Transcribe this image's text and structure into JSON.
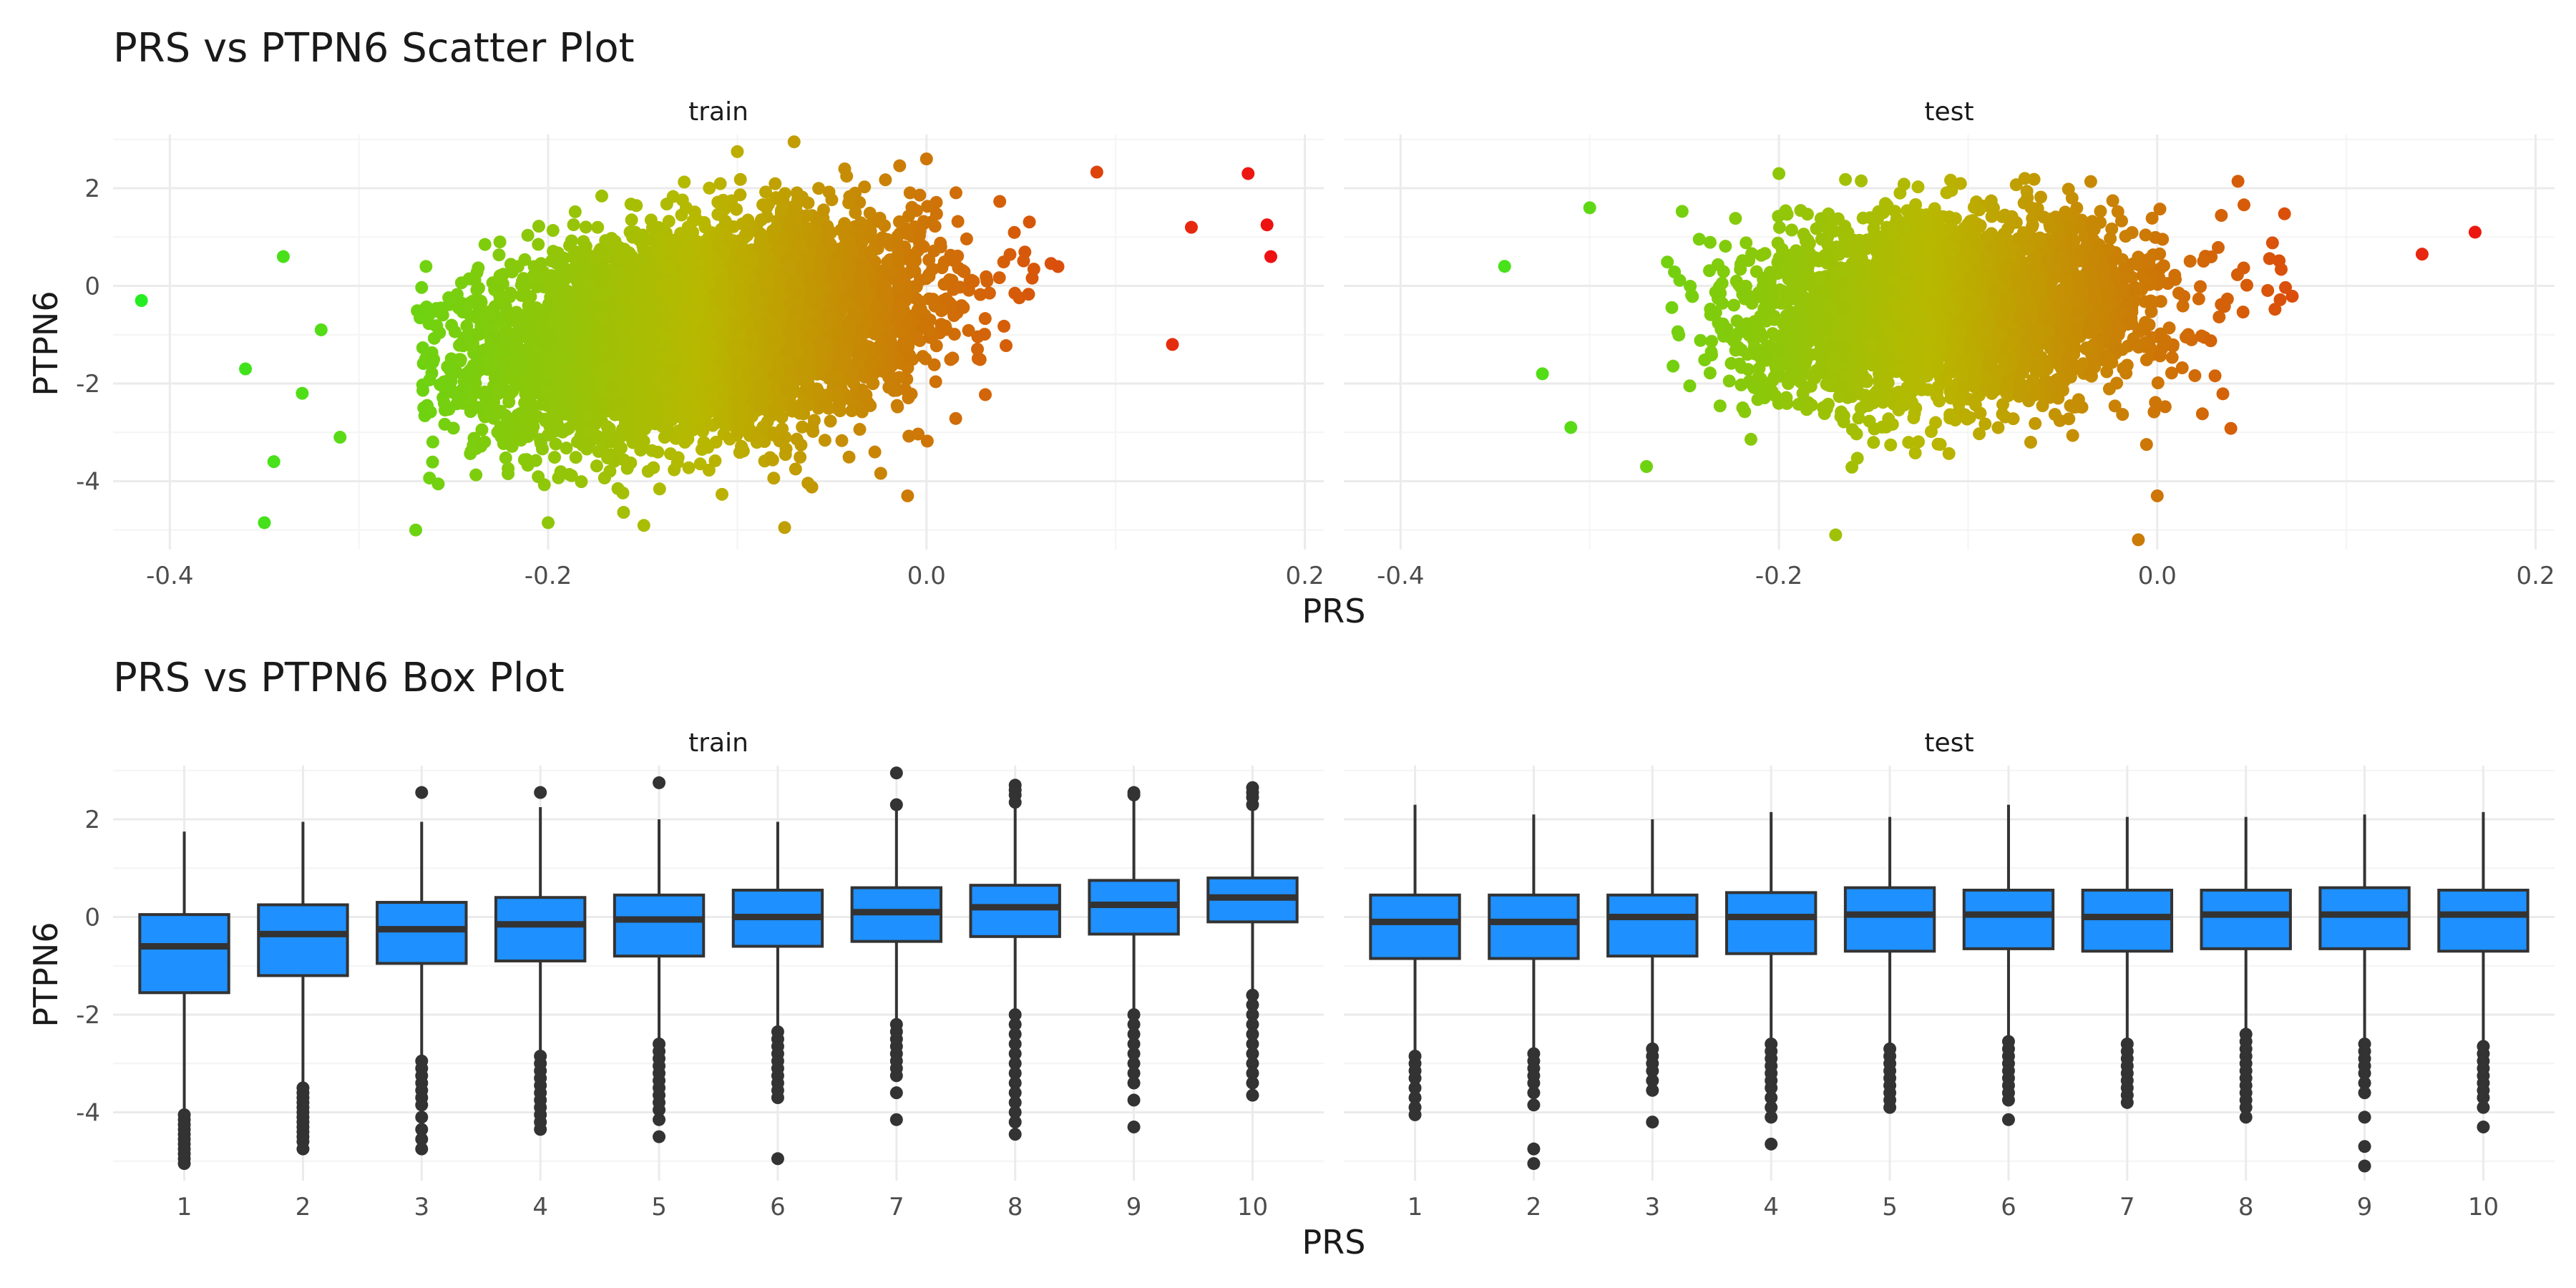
{
  "chart_data": [
    {
      "type": "scatter",
      "title": "PRS vs PTPN6 Scatter Plot",
      "xlabel": "PRS",
      "ylabel": "PTPN6",
      "xlim": [
        -0.43,
        0.21
      ],
      "ylim": [
        -5.4,
        3.1
      ],
      "x_ticks": [
        -0.4,
        -0.2,
        0.0,
        0.2
      ],
      "x_tick_labels": [
        "-0.4",
        "-0.2",
        "0.0",
        "0.2"
      ],
      "y_ticks": [
        -4,
        -2,
        0,
        2
      ],
      "y_tick_labels": [
        "-4",
        "-2",
        "0",
        "2"
      ],
      "color_scale": {
        "low": "#22ee22",
        "mid": "#b8b800",
        "high": "#ee1111",
        "variable": "PRS",
        "range": [
          -0.42,
          0.18
        ]
      },
      "grid": true,
      "panels": [
        {
          "strip": "train",
          "cloud": {
            "x_mean": -0.12,
            "x_sd": 0.058,
            "y_mean": -0.9,
            "y_sd": 1.0,
            "slope": 5.0,
            "x_range": [
              -0.27,
              0.15
            ],
            "y_range": [
              -5.0,
              2.6
            ],
            "n_points": 6000
          },
          "points": [
            {
              "x": -0.415,
              "y": -0.3
            },
            {
              "x": 0.17,
              "y": 2.3
            },
            {
              "x": 0.18,
              "y": 1.25
            },
            {
              "x": 0.182,
              "y": 0.6
            },
            {
              "x": -0.35,
              "y": -4.85
            },
            {
              "x": -0.07,
              "y": 2.95
            },
            {
              "x": -0.345,
              "y": -3.6
            },
            {
              "x": -0.36,
              "y": -1.7
            },
            {
              "x": -0.34,
              "y": 0.6
            },
            {
              "x": -0.32,
              "y": -0.9
            },
            {
              "x": -0.27,
              "y": -5.0
            },
            {
              "x": -0.2,
              "y": -4.85
            },
            {
              "x": -0.075,
              "y": -4.95
            },
            {
              "x": -0.1,
              "y": 2.75
            },
            {
              "x": 0.0,
              "y": 2.6
            },
            {
              "x": 0.14,
              "y": 1.2
            },
            {
              "x": 0.13,
              "y": -1.2
            },
            {
              "x": -0.01,
              "y": -4.3
            },
            {
              "x": -0.33,
              "y": -2.2
            },
            {
              "x": -0.31,
              "y": -3.1
            }
          ]
        },
        {
          "strip": "test",
          "cloud": {
            "x_mean": -0.11,
            "x_sd": 0.055,
            "y_mean": -0.5,
            "y_sd": 0.95,
            "slope": 2.0,
            "x_range": [
              -0.26,
              0.13
            ],
            "y_range": [
              -5.0,
              2.2
            ],
            "n_points": 3200
          },
          "points": [
            {
              "x": 0.168,
              "y": 1.1
            },
            {
              "x": -0.345,
              "y": 0.4
            },
            {
              "x": -0.325,
              "y": -1.8
            },
            {
              "x": -0.01,
              "y": -5.2
            },
            {
              "x": -0.17,
              "y": -5.1
            },
            {
              "x": -0.07,
              "y": 2.2
            },
            {
              "x": 0.14,
              "y": 0.65
            },
            {
              "x": -0.3,
              "y": 1.6
            },
            {
              "x": -0.27,
              "y": -3.7
            },
            {
              "x": 0.0,
              "y": -4.3
            },
            {
              "x": -0.2,
              "y": 2.3
            },
            {
              "x": -0.31,
              "y": -2.9
            }
          ]
        }
      ]
    },
    {
      "type": "box",
      "title": "PRS vs PTPN6 Box Plot",
      "xlabel": "PRS",
      "ylabel": "PTPN6",
      "categories": [
        "1",
        "2",
        "3",
        "4",
        "5",
        "6",
        "7",
        "8",
        "9",
        "10"
      ],
      "ylim": [
        -5.4,
        3.1
      ],
      "y_ticks": [
        -4,
        -2,
        0,
        2
      ],
      "y_tick_labels": [
        "-4",
        "-2",
        "0",
        "2"
      ],
      "box_color": "#1e90ff",
      "grid": true,
      "panels": [
        {
          "strip": "train",
          "boxes": [
            {
              "whisker_low": -4.0,
              "q1": -1.55,
              "median": -0.6,
              "q3": 0.05,
              "whisker_high": 1.75,
              "outliers": [
                -4.05,
                -4.15,
                -4.25,
                -4.35,
                -4.45,
                -4.55,
                -4.65,
                -4.75,
                -4.85,
                -4.95,
                -5.05
              ]
            },
            {
              "whisker_low": -3.45,
              "q1": -1.2,
              "median": -0.35,
              "q3": 0.25,
              "whisker_high": 1.95,
              "outliers": [
                -3.5,
                -3.6,
                -3.7,
                -3.8,
                -3.9,
                -4.0,
                -4.1,
                -4.2,
                -4.3,
                -4.4,
                -4.5,
                -4.6,
                -4.75
              ]
            },
            {
              "whisker_low": -2.9,
              "q1": -0.95,
              "median": -0.25,
              "q3": 0.3,
              "whisker_high": 1.95,
              "outliers": [
                2.55,
                -2.95,
                -3.1,
                -3.25,
                -3.4,
                -3.55,
                -3.7,
                -3.85,
                -4.1,
                -4.35,
                -4.55,
                -4.75
              ]
            },
            {
              "whisker_low": -2.8,
              "q1": -0.9,
              "median": -0.15,
              "q3": 0.4,
              "whisker_high": 2.25,
              "outliers": [
                2.55,
                -2.85,
                -3.0,
                -3.15,
                -3.3,
                -3.45,
                -3.6,
                -3.75,
                -3.9,
                -4.05,
                -4.2,
                -4.35
              ]
            },
            {
              "whisker_low": -2.55,
              "q1": -0.8,
              "median": -0.05,
              "q3": 0.45,
              "whisker_high": 2.0,
              "outliers": [
                2.75,
                -2.6,
                -2.75,
                -2.9,
                -3.05,
                -3.2,
                -3.35,
                -3.5,
                -3.65,
                -3.8,
                -3.95,
                -4.15,
                -4.5
              ]
            },
            {
              "whisker_low": -2.3,
              "q1": -0.6,
              "median": 0.0,
              "q3": 0.55,
              "whisker_high": 1.95,
              "outliers": [
                -2.35,
                -2.5,
                -2.65,
                -2.8,
                -2.95,
                -3.1,
                -3.25,
                -3.4,
                -3.55,
                -3.7,
                -4.95
              ]
            },
            {
              "whisker_low": -2.15,
              "q1": -0.5,
              "median": 0.1,
              "q3": 0.6,
              "whisker_high": 2.25,
              "outliers": [
                2.3,
                2.95,
                -2.2,
                -2.35,
                -2.5,
                -2.65,
                -2.8,
                -2.95,
                -3.1,
                -3.25,
                -3.6,
                -4.15
              ]
            },
            {
              "whisker_low": -1.95,
              "q1": -0.4,
              "median": 0.2,
              "q3": 0.65,
              "whisker_high": 2.25,
              "outliers": [
                2.35,
                2.5,
                2.6,
                2.7,
                -2.0,
                -2.2,
                -2.4,
                -2.6,
                -2.8,
                -3.0,
                -3.2,
                -3.4,
                -3.6,
                -3.8,
                -4.0,
                -4.2,
                -4.45
              ]
            },
            {
              "whisker_low": -1.95,
              "q1": -0.35,
              "median": 0.25,
              "q3": 0.75,
              "whisker_high": 2.4,
              "outliers": [
                2.5,
                2.55,
                -2.0,
                -2.2,
                -2.4,
                -2.6,
                -2.8,
                -3.0,
                -3.2,
                -3.4,
                -3.75,
                -4.3
              ]
            },
            {
              "whisker_low": -1.55,
              "q1": -0.1,
              "median": 0.4,
              "q3": 0.8,
              "whisker_high": 2.2,
              "outliers": [
                2.3,
                2.45,
                2.55,
                2.65,
                -1.6,
                -1.8,
                -2.0,
                -2.2,
                -2.4,
                -2.6,
                -2.8,
                -3.0,
                -3.2,
                -3.4,
                -3.65
              ]
            }
          ]
        },
        {
          "strip": "test",
          "boxes": [
            {
              "whisker_low": -2.8,
              "q1": -0.85,
              "median": -0.1,
              "q3": 0.45,
              "whisker_high": 2.3,
              "outliers": [
                -2.85,
                -3.0,
                -3.15,
                -3.3,
                -3.5,
                -3.7,
                -3.9,
                -4.05
              ]
            },
            {
              "whisker_low": -2.75,
              "q1": -0.85,
              "median": -0.1,
              "q3": 0.45,
              "whisker_high": 2.1,
              "outliers": [
                -2.8,
                -2.95,
                -3.1,
                -3.25,
                -3.4,
                -3.6,
                -3.85,
                -4.75,
                -5.05
              ]
            },
            {
              "whisker_low": -2.65,
              "q1": -0.8,
              "median": 0.0,
              "q3": 0.45,
              "whisker_high": 2.0,
              "outliers": [
                -2.7,
                -2.85,
                -3.0,
                -3.15,
                -3.35,
                -3.55,
                -4.2
              ]
            },
            {
              "whisker_low": -2.55,
              "q1": -0.75,
              "median": 0.0,
              "q3": 0.5,
              "whisker_high": 2.15,
              "outliers": [
                -2.6,
                -2.75,
                -2.9,
                -3.05,
                -3.2,
                -3.35,
                -3.5,
                -3.7,
                -3.9,
                -4.1,
                -4.65
              ]
            },
            {
              "whisker_low": -2.65,
              "q1": -0.7,
              "median": 0.05,
              "q3": 0.6,
              "whisker_high": 2.05,
              "outliers": [
                -2.7,
                -2.85,
                -3.0,
                -3.15,
                -3.3,
                -3.45,
                -3.6,
                -3.75,
                -3.9
              ]
            },
            {
              "whisker_low": -2.5,
              "q1": -0.65,
              "median": 0.05,
              "q3": 0.55,
              "whisker_high": 2.3,
              "outliers": [
                -2.55,
                -2.7,
                -2.85,
                -3.0,
                -3.15,
                -3.3,
                -3.45,
                -3.6,
                -3.75,
                -4.15
              ]
            },
            {
              "whisker_low": -2.55,
              "q1": -0.7,
              "median": 0.0,
              "q3": 0.55,
              "whisker_high": 2.05,
              "outliers": [
                -2.6,
                -2.75,
                -2.9,
                -3.05,
                -3.2,
                -3.35,
                -3.5,
                -3.65,
                -3.8
              ]
            },
            {
              "whisker_low": -2.35,
              "q1": -0.65,
              "median": 0.05,
              "q3": 0.55,
              "whisker_high": 2.05,
              "outliers": [
                -2.4,
                -2.55,
                -2.7,
                -2.85,
                -3.0,
                -3.15,
                -3.3,
                -3.45,
                -3.6,
                -3.75,
                -3.9,
                -4.1
              ]
            },
            {
              "whisker_low": -2.55,
              "q1": -0.65,
              "median": 0.05,
              "q3": 0.6,
              "whisker_high": 2.1,
              "outliers": [
                -2.6,
                -2.75,
                -2.9,
                -3.05,
                -3.2,
                -3.4,
                -3.6,
                -4.1,
                -4.7,
                -5.1
              ]
            },
            {
              "whisker_low": -2.6,
              "q1": -0.7,
              "median": 0.05,
              "q3": 0.55,
              "whisker_high": 2.15,
              "outliers": [
                -2.65,
                -2.8,
                -2.95,
                -3.1,
                -3.25,
                -3.4,
                -3.55,
                -3.7,
                -3.9,
                -4.3
              ]
            }
          ]
        }
      ]
    }
  ]
}
